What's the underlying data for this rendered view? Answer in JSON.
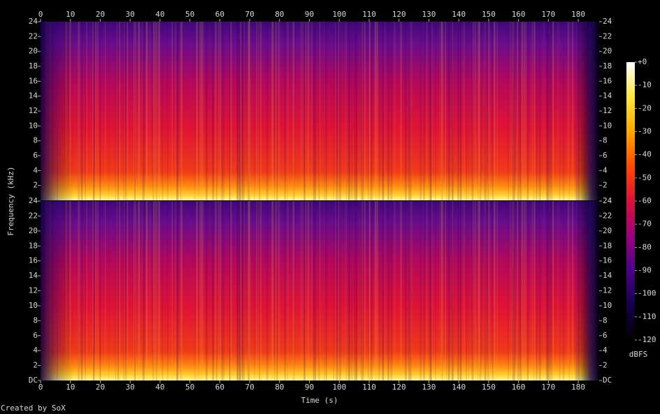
{
  "chart_data": {
    "type": "spectrogram",
    "x_label": "Time (s)",
    "y_label": "Frequency (kHz)",
    "colorbar_label": "dBFS",
    "footer": "Created by SoX",
    "xlim": [
      0,
      187
    ],
    "xticks": [
      0,
      10,
      20,
      30,
      40,
      50,
      60,
      70,
      80,
      90,
      100,
      110,
      120,
      130,
      140,
      150,
      160,
      170,
      180
    ],
    "panels": [
      {
        "ylim": [
          0,
          24
        ],
        "yticks": [
          2,
          4,
          6,
          8,
          10,
          12,
          14,
          16,
          18,
          20,
          22,
          24
        ]
      },
      {
        "ylim": [
          0,
          24
        ],
        "yticks": [
          {
            "value": 0,
            "label": "DC"
          },
          2,
          4,
          6,
          8,
          10,
          12,
          14,
          16,
          18,
          20,
          22,
          24
        ]
      }
    ],
    "zlim": [
      -120,
      0
    ],
    "zticks": [
      {
        "value": 0,
        "label": "+0"
      },
      -10,
      -20,
      -30,
      -40,
      -50,
      -60,
      -70,
      -80,
      -90,
      -100,
      -110,
      -120
    ],
    "colormap": [
      "#000000",
      "#14004a",
      "#4a0088",
      "#9a0080",
      "#dc1038",
      "#ff4a00",
      "#ffa800",
      "#ffe840",
      "#ffffff"
    ]
  }
}
